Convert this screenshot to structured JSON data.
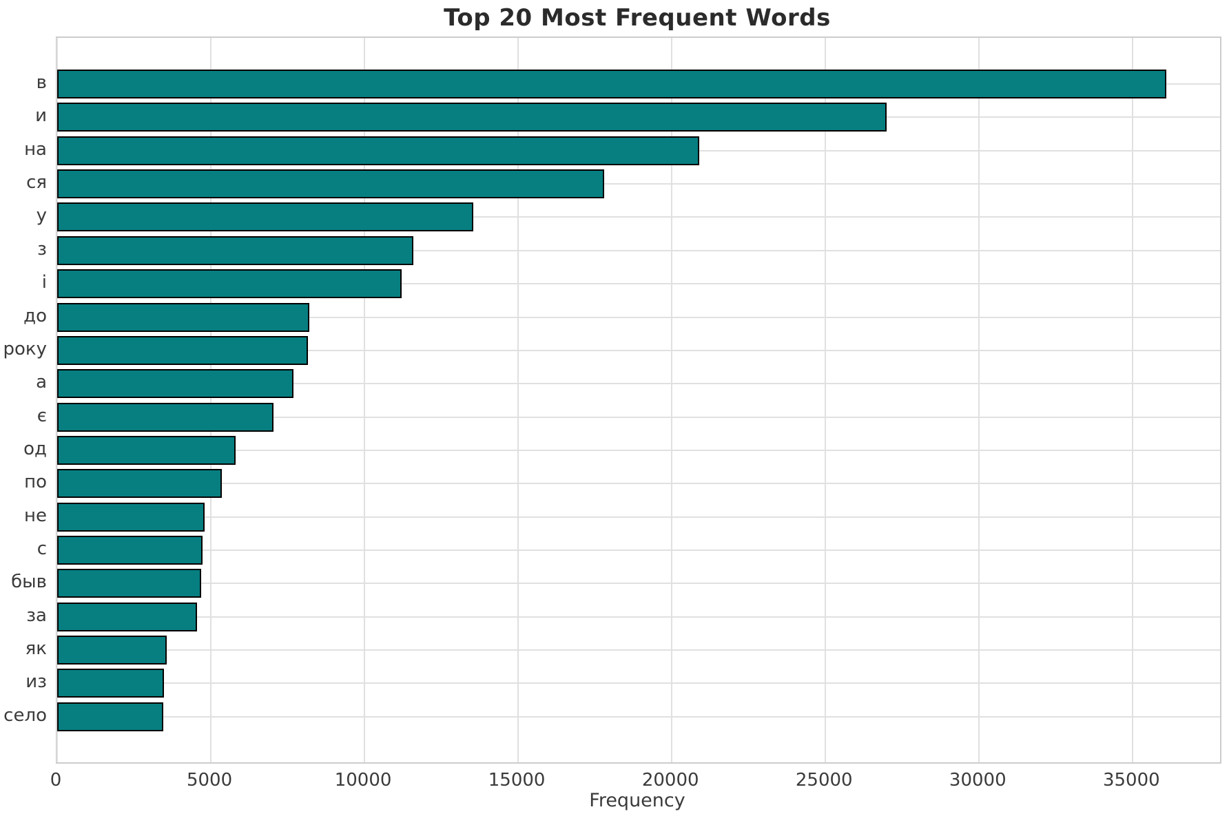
{
  "title": "Top 20 Most Frequent Words",
  "chart_data": {
    "type": "bar",
    "orientation": "horizontal",
    "title": "Top 20 Most Frequent Words",
    "xlabel": "Frequency",
    "ylabel": "",
    "categories": [
      "в",
      "и",
      "на",
      "ся",
      "у",
      "з",
      "і",
      "до",
      "року",
      "а",
      "є",
      "од",
      "по",
      "не",
      "с",
      "быв",
      "за",
      "як",
      "из",
      "село"
    ],
    "values": [
      36100,
      27000,
      20900,
      17800,
      13550,
      11600,
      11200,
      8200,
      8150,
      7700,
      7050,
      5800,
      5350,
      4800,
      4720,
      4690,
      4550,
      3560,
      3480,
      3450
    ],
    "xticks": [
      0,
      5000,
      10000,
      15000,
      20000,
      25000,
      30000,
      35000
    ],
    "xlim": [
      0,
      37840
    ],
    "grid": true,
    "legend": "none",
    "bar_color": "#077f81",
    "bar_edge_color": "#000000",
    "grid_color": "#e0e0e0",
    "spine_color": "#cccccc",
    "text_color": "#3b3b3b",
    "title_color": "#2b2b2b"
  }
}
